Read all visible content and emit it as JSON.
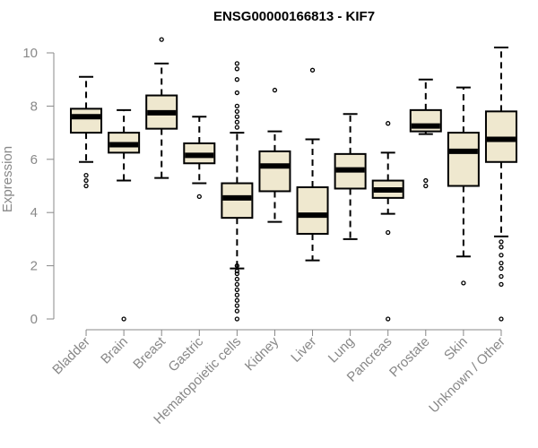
{
  "chart_data": {
    "type": "boxplot",
    "title": "ENSG00000166813 - KIF7",
    "xlabel": "",
    "ylabel": "Expression",
    "ylim": [
      0,
      10.5
    ],
    "yticks": [
      0,
      2,
      4,
      6,
      8,
      10
    ],
    "grid": false,
    "colors": {
      "box_fill": "#efe8cf",
      "box_stroke": "#000000",
      "median": "#000000",
      "axis": "#888888"
    },
    "categories": [
      "Bladder",
      "Brain",
      "Breast",
      "Gastric",
      "Hematopoietic cells",
      "Kidney",
      "Liver",
      "Lung",
      "Pancreas",
      "Prostate",
      "Skin",
      "Unknown / Other"
    ],
    "boxes": [
      {
        "whisker_low": 5.9,
        "q1": 7.0,
        "median": 7.6,
        "q3": 7.9,
        "whisker_high": 9.1,
        "outliers": [
          5.0,
          5.2,
          5.4
        ]
      },
      {
        "whisker_low": 5.2,
        "q1": 6.25,
        "median": 6.55,
        "q3": 7.0,
        "whisker_high": 7.85,
        "outliers": [
          0.0
        ]
      },
      {
        "whisker_low": 5.3,
        "q1": 7.15,
        "median": 7.75,
        "q3": 8.4,
        "whisker_high": 9.6,
        "outliers": [
          10.5
        ]
      },
      {
        "whisker_low": 5.1,
        "q1": 5.85,
        "median": 6.15,
        "q3": 6.6,
        "whisker_high": 7.6,
        "outliers": [
          4.6
        ]
      },
      {
        "whisker_low": 1.9,
        "q1": 3.8,
        "median": 4.55,
        "q3": 5.1,
        "whisker_high": 7.0,
        "outliers": [
          0.0,
          0.3,
          0.5,
          0.7,
          0.9,
          1.1,
          1.3,
          1.5,
          1.7,
          1.8,
          2.0,
          7.2,
          7.4,
          7.6,
          7.8,
          8.0,
          8.5,
          9.0,
          9.4,
          9.6
        ]
      },
      {
        "whisker_low": 3.65,
        "q1": 4.8,
        "median": 5.75,
        "q3": 6.3,
        "whisker_high": 7.05,
        "outliers": [
          8.6
        ]
      },
      {
        "whisker_low": 2.2,
        "q1": 3.2,
        "median": 3.9,
        "q3": 4.95,
        "whisker_high": 6.75,
        "outliers": [
          9.35
        ]
      },
      {
        "whisker_low": 3.0,
        "q1": 4.9,
        "median": 5.6,
        "q3": 6.2,
        "whisker_high": 7.7,
        "outliers": []
      },
      {
        "whisker_low": 3.95,
        "q1": 4.55,
        "median": 4.85,
        "q3": 5.2,
        "whisker_high": 6.25,
        "outliers": [
          0.0,
          3.25,
          7.35
        ]
      },
      {
        "whisker_low": 6.95,
        "q1": 7.05,
        "median": 7.25,
        "q3": 7.85,
        "whisker_high": 9.0,
        "outliers": [
          5.0,
          5.2
        ]
      },
      {
        "whisker_low": 2.35,
        "q1": 5.0,
        "median": 6.3,
        "q3": 7.0,
        "whisker_high": 8.7,
        "outliers": [
          1.35
        ]
      },
      {
        "whisker_low": 3.1,
        "q1": 5.9,
        "median": 6.75,
        "q3": 7.8,
        "whisker_high": 10.2,
        "outliers": [
          0.0,
          1.3,
          1.6,
          1.9,
          2.1,
          2.4,
          2.7,
          2.9
        ]
      }
    ]
  }
}
